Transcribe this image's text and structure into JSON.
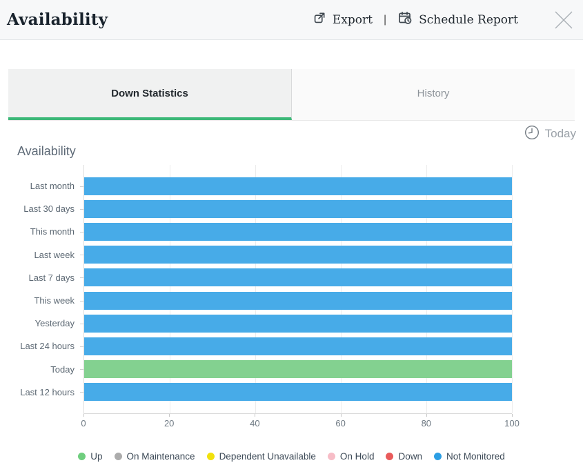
{
  "header": {
    "title": "Availability",
    "export_label": "Export",
    "separator": "|",
    "schedule_label": "Schedule Report"
  },
  "tabs": [
    {
      "label": "Down Statistics",
      "active": true
    },
    {
      "label": "History",
      "active": false
    }
  ],
  "time_filter": {
    "label": "Today"
  },
  "chart_data": {
    "type": "bar",
    "orientation": "horizontal",
    "title": "Availability",
    "categories": [
      "Last month",
      "Last 30 days",
      "This month",
      "Last week",
      "Last 7 days",
      "This week",
      "Yesterday",
      "Last 24 hours",
      "Today",
      "Last 12 hours"
    ],
    "values": [
      100,
      100,
      100,
      100,
      100,
      100,
      100,
      100,
      100,
      100
    ],
    "bar_colors": [
      "#47abe8",
      "#47abe8",
      "#47abe8",
      "#47abe8",
      "#47abe8",
      "#47abe8",
      "#47abe8",
      "#47abe8",
      "#83d190",
      "#47abe8"
    ],
    "xlim": [
      0,
      100
    ],
    "x_ticks": [
      0,
      20,
      40,
      60,
      80,
      100
    ],
    "grid": true,
    "legend_position": "bottom",
    "legend": [
      {
        "label": "Up",
        "color": "#6fce7e"
      },
      {
        "label": "On Maintenance",
        "color": "#acacac"
      },
      {
        "label": "Dependent Unavailable",
        "color": "#f1e10c"
      },
      {
        "label": "On Hold",
        "color": "#f7bdc7"
      },
      {
        "label": "Down",
        "color": "#e95b5b"
      },
      {
        "label": "Not Monitored",
        "color": "#2c9ee4"
      }
    ]
  },
  "colors": {
    "accent_green": "#3cb878",
    "bar_blue": "#47abe8",
    "bar_green": "#83d190"
  }
}
